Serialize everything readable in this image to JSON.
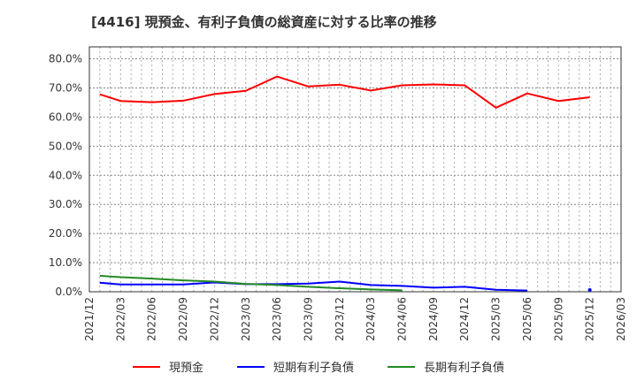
{
  "title": "[4416]  現預金、有利子負債の総資産に対する比率の推移",
  "colors": {
    "cash": "#ff0000",
    "short_debt": "#0000ff",
    "long_debt": "#228b22",
    "grid": "#999999",
    "axis": "#333333"
  },
  "chart_data": {
    "type": "line",
    "title": "[4416]  現預金、有利子負債の総資産に対する比率の推移",
    "xlabel": "",
    "ylabel": "",
    "ylim": [
      0,
      80
    ],
    "x_tick_labels": [
      "2021/12",
      "2022/03",
      "2022/06",
      "2022/09",
      "2022/12",
      "2023/03",
      "2023/06",
      "2023/09",
      "2023/12",
      "2024/03",
      "2024/06",
      "2024/09",
      "2024/12",
      "2025/03",
      "2025/06",
      "2025/09",
      "2025/12",
      "2026/03"
    ],
    "y_tick_labels": [
      "0.0%",
      "10.0%",
      "20.0%",
      "30.0%",
      "40.0%",
      "50.0%",
      "60.0%",
      "70.0%",
      "80.0%"
    ],
    "x_month_range": [
      "2021/12",
      "2026/03"
    ],
    "grid": true,
    "legend_position": "bottom",
    "categories": [
      "2022/01",
      "2022/03",
      "2022/06",
      "2022/09",
      "2022/12",
      "2023/03",
      "2023/06",
      "2023/09",
      "2023/12",
      "2024/03",
      "2024/06",
      "2024/09",
      "2024/12",
      "2025/03",
      "2025/06",
      "2025/09",
      "2025/12"
    ],
    "month_offsets": [
      1,
      3,
      6,
      9,
      12,
      15,
      18,
      21,
      24,
      27,
      30,
      33,
      36,
      39,
      42,
      45,
      48
    ],
    "series": [
      {
        "name": "現預金",
        "color": "#ff0000",
        "values": [
          67.8,
          65.5,
          65.1,
          65.6,
          67.9,
          69.0,
          73.9,
          70.5,
          71.1,
          69.1,
          70.9,
          71.2,
          70.9,
          63.2,
          68.1,
          65.5,
          66.8
        ]
      },
      {
        "name": "短期有利子負債",
        "color": "#0000ff",
        "values": [
          3.1,
          2.5,
          2.5,
          2.5,
          3.2,
          2.6,
          2.6,
          2.8,
          3.5,
          2.3,
          2.0,
          1.4,
          1.7,
          0.7,
          0.4,
          null,
          0.6
        ]
      },
      {
        "name": "長期有利子負債",
        "color": "#228b22",
        "values": [
          5.5,
          5.0,
          4.5,
          3.9,
          3.5,
          2.7,
          2.3,
          1.7,
          1.2,
          0.8,
          0.5,
          null,
          null,
          null,
          null,
          null,
          null
        ]
      }
    ]
  },
  "legend": {
    "items": [
      {
        "label": "現預金",
        "color": "#ff0000"
      },
      {
        "label": "短期有利子負債",
        "color": "#0000ff"
      },
      {
        "label": "長期有利子負債",
        "color": "#228b22"
      }
    ]
  }
}
